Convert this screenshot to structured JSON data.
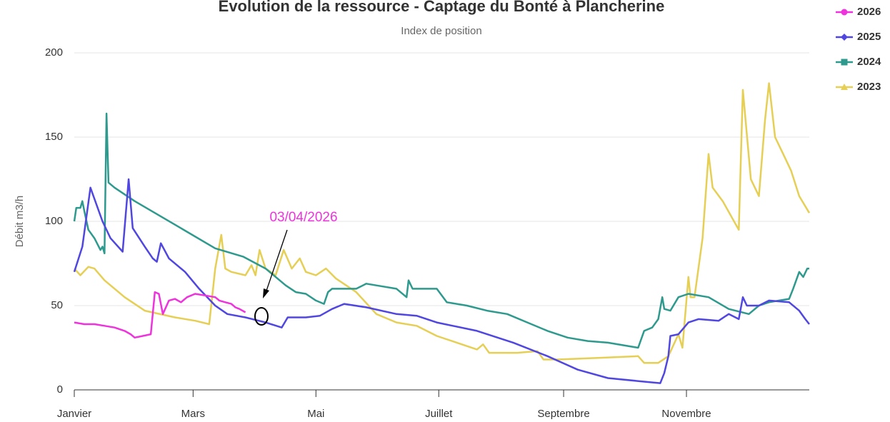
{
  "chart_data": {
    "type": "line",
    "title": "Evolution de la ressource - Captage du Bonté à Plancherine",
    "subtitle": "Index de position",
    "y_label": "Débit   m3/h",
    "annotation": "03/04/2026",
    "xlim": [
      0,
      365
    ],
    "xticks": [
      {
        "value": 0,
        "label": "Janvier"
      },
      {
        "value": 59,
        "label": "Mars"
      },
      {
        "value": 120,
        "label": "Mai"
      },
      {
        "value": 181,
        "label": "Juillet"
      },
      {
        "value": 243,
        "label": "Septembre"
      },
      {
        "value": 304,
        "label": "Novembre"
      }
    ],
    "ylim": [
      0,
      200
    ],
    "yticks": [
      0,
      50,
      100,
      150,
      200
    ],
    "grid": true,
    "series": [
      {
        "name": "2026",
        "color": "#ee33dd",
        "marker": "circle",
        "x": [
          0,
          5,
          10,
          15,
          20,
          25,
          28,
          30,
          34,
          38,
          40,
          42,
          44,
          47,
          50,
          53,
          56,
          60,
          65,
          70,
          72,
          75,
          78,
          80,
          82,
          85
        ],
        "values": [
          40,
          39,
          39,
          38,
          37,
          35,
          33,
          31,
          32,
          33,
          58,
          57,
          45,
          53,
          54,
          52,
          55,
          57,
          56,
          55,
          53,
          52,
          51,
          49,
          48,
          46
        ]
      },
      {
        "name": "2025",
        "color": "#5046e0",
        "marker": "diamond",
        "x": [
          0,
          4,
          8,
          14,
          18,
          24,
          27,
          29,
          35,
          39,
          41,
          43,
          47,
          55,
          62,
          70,
          76,
          85,
          95,
          103,
          106,
          115,
          122,
          128,
          134,
          145,
          160,
          170,
          180,
          200,
          218,
          235,
          250,
          265,
          282,
          291,
          293,
          295,
          296,
          300,
          305,
          310,
          320,
          325,
          330,
          332,
          334,
          340,
          345,
          355,
          360,
          363,
          365
        ],
        "values": [
          70,
          85,
          120,
          100,
          90,
          82,
          125,
          96,
          85,
          78,
          76,
          87,
          78,
          70,
          60,
          50,
          45,
          43,
          40,
          37,
          43,
          43,
          44,
          48,
          51,
          49,
          45,
          44,
          40,
          35,
          28,
          20,
          12,
          7,
          5,
          4,
          10,
          20,
          32,
          33,
          40,
          42,
          41,
          45,
          42,
          55,
          50,
          50,
          53,
          52,
          47,
          42,
          39
        ]
      },
      {
        "name": "2024",
        "color": "#2e9a8e",
        "marker": "square",
        "x": [
          0,
          1,
          3,
          4,
          5,
          7,
          10,
          13,
          14,
          15,
          16,
          17,
          20,
          30,
          50,
          70,
          84,
          95,
          105,
          110,
          115,
          120,
          124,
          126,
          128,
          140,
          145,
          150,
          160,
          165,
          166,
          168,
          180,
          185,
          195,
          205,
          215,
          225,
          235,
          245,
          255,
          265,
          275,
          280,
          283,
          287,
          290,
          292,
          293,
          296,
          300,
          305,
          315,
          325,
          335,
          340,
          345,
          350,
          355,
          357,
          360,
          362,
          364,
          365
        ],
        "values": [
          100,
          108,
          108,
          112,
          106,
          95,
          90,
          83,
          85,
          81,
          164,
          123,
          120,
          112,
          98,
          84,
          79,
          72,
          62,
          58,
          57,
          53,
          51,
          58,
          60,
          60,
          63,
          62,
          60,
          55,
          65,
          60,
          60,
          52,
          50,
          47,
          45,
          40,
          35,
          31,
          29,
          28,
          26,
          25,
          35,
          37,
          42,
          55,
          48,
          47,
          55,
          57,
          55,
          48,
          45,
          50,
          52,
          53,
          54,
          60,
          70,
          67,
          72,
          72
        ]
      },
      {
        "name": "2023",
        "color": "#e6cf55",
        "marker": "triangle",
        "x": [
          0,
          3,
          7,
          10,
          15,
          25,
          35,
          50,
          60,
          67,
          70,
          73,
          75,
          78,
          85,
          88,
          90,
          92,
          95,
          100,
          104,
          108,
          112,
          115,
          120,
          125,
          130,
          140,
          150,
          160,
          170,
          180,
          190,
          200,
          203,
          206,
          220,
          230,
          233,
          240,
          260,
          280,
          283,
          290,
          295,
          300,
          302,
          305,
          306,
          308,
          312,
          315,
          317,
          322,
          330,
          332,
          336,
          340,
          343,
          345,
          348,
          352,
          356,
          360,
          365
        ],
        "values": [
          72,
          68,
          73,
          72,
          65,
          55,
          47,
          43,
          41,
          39,
          72,
          92,
          72,
          70,
          68,
          74,
          68,
          83,
          72,
          68,
          83,
          72,
          78,
          70,
          68,
          72,
          66,
          58,
          45,
          40,
          38,
          32,
          28,
          24,
          27,
          22,
          22,
          23,
          18,
          18,
          19,
          20,
          16,
          16,
          20,
          33,
          25,
          67,
          55,
          55,
          90,
          140,
          120,
          112,
          95,
          178,
          125,
          115,
          160,
          182,
          150,
          140,
          130,
          115,
          105
        ]
      }
    ]
  }
}
